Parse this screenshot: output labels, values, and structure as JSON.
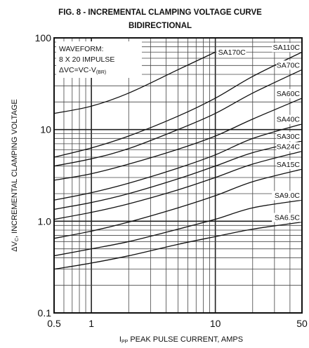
{
  "chart_data": {
    "type": "line",
    "title": "FIG. 8 - INCREMENTAL CLAMPING VOLTAGE CURVE",
    "subtitle": "BIDIRECTIONAL",
    "xlabel_prefix": "I",
    "xlabel_sub": "PP",
    "xlabel_rest": " PEAK PULSE CURRENT, AMPS",
    "ylabel_prefix": "ΔV",
    "ylabel_sub": "C",
    "ylabel_rest": ", INCREMENTAL CLAMPING VOLTAGE",
    "x_scale": "log",
    "y_scale": "log",
    "xlim": [
      0.5,
      50
    ],
    "ylim": [
      0.1,
      100
    ],
    "x_ticks": [
      0.5,
      1,
      10,
      50
    ],
    "x_tick_labels": [
      "0.5",
      "1",
      "10",
      "50"
    ],
    "y_ticks": [
      0.1,
      1,
      10,
      100
    ],
    "y_tick_labels": [
      "0.1",
      "1.0",
      "10",
      "100"
    ],
    "grid": true,
    "annotation": {
      "line1": "WAVEFORM:",
      "line2": "8 X 20 IMPULSE",
      "line3_main": "ΔVC=VC-V",
      "line3_sub": "(BR)"
    },
    "series": [
      {
        "name": "SA170C",
        "x": [
          0.5,
          1,
          2,
          5,
          10
        ],
        "y": [
          15,
          18,
          25,
          45,
          70
        ]
      },
      {
        "name": "SA110C",
        "x": [
          0.5,
          1,
          2,
          5,
          10,
          20,
          50
        ],
        "y": [
          5,
          6.3,
          8.5,
          14,
          22,
          38,
          70
        ]
      },
      {
        "name": "SA70C",
        "x": [
          0.5,
          1,
          2,
          5,
          10,
          20,
          50
        ],
        "y": [
          4,
          4.8,
          6.2,
          10,
          15,
          25,
          45
        ]
      },
      {
        "name": "SA60C",
        "x": [
          0.5,
          1,
          2,
          5,
          10,
          20,
          50
        ],
        "y": [
          2.8,
          3.3,
          4.2,
          6.1,
          8.5,
          13,
          22
        ]
      },
      {
        "name": "SA40C",
        "x": [
          0.5,
          1,
          2,
          5,
          10,
          20,
          50
        ],
        "y": [
          1.7,
          2.05,
          2.6,
          3.8,
          5.3,
          8,
          11.5
        ]
      },
      {
        "name": "SA30C",
        "x": [
          0.5,
          1,
          2,
          5,
          10,
          20,
          50
        ],
        "y": [
          1.35,
          1.6,
          2,
          2.9,
          4,
          5.6,
          7.5
        ]
      },
      {
        "name": "SA24C",
        "x": [
          0.5,
          1,
          2,
          5,
          10,
          20,
          50
        ],
        "y": [
          1.05,
          1.25,
          1.55,
          2.2,
          3,
          4.2,
          5.8
        ]
      },
      {
        "name": "SA15C",
        "x": [
          0.5,
          1,
          2,
          5,
          10,
          20,
          50
        ],
        "y": [
          0.65,
          0.78,
          0.98,
          1.4,
          1.9,
          2.7,
          3.7
        ]
      },
      {
        "name": "SA9.0C",
        "x": [
          0.5,
          1,
          2,
          5,
          10,
          20,
          50
        ],
        "y": [
          0.42,
          0.5,
          0.6,
          0.82,
          1.05,
          1.4,
          1.7
        ]
      },
      {
        "name": "SA6.5C",
        "x": [
          0.5,
          1,
          2,
          5,
          10,
          20,
          50
        ],
        "y": [
          0.3,
          0.35,
          0.42,
          0.56,
          0.68,
          0.82,
          0.98
        ]
      }
    ]
  }
}
